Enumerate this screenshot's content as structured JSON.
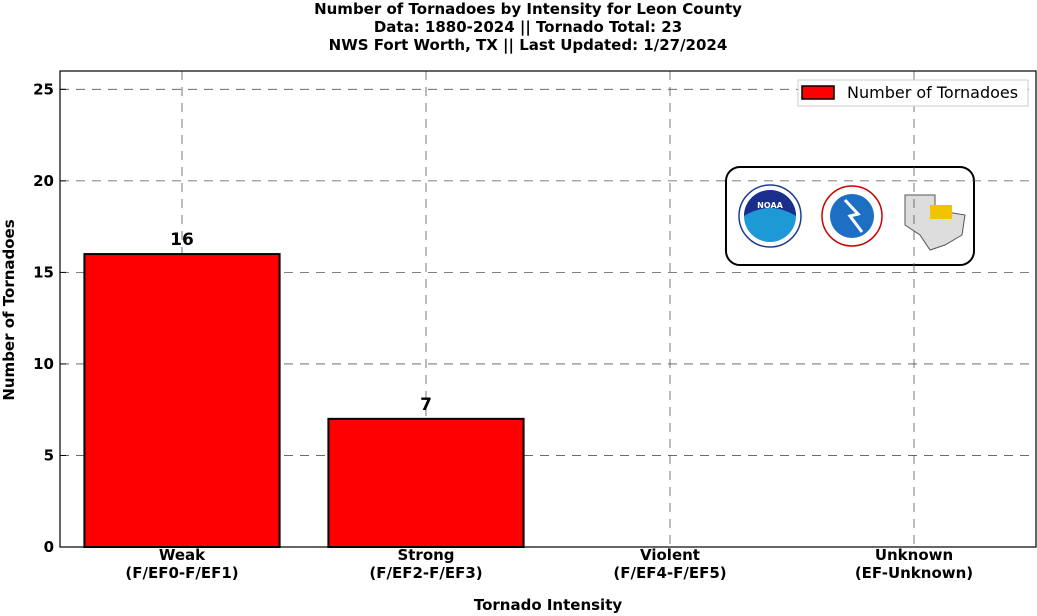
{
  "chart_data": {
    "type": "bar",
    "title": "Number of Tornadoes by Intensity for Leon County\nData: 1880-2024 || Tornado Total: 23\nNWS Fort Worth, TX || Last Updated: 1/27/2024",
    "xlabel": "Tornado Intensity",
    "ylabel": "Number of Tornadoes",
    "categories": [
      "Weak\n(F/EF0-F/EF1)",
      "Strong\n(F/EF2-F/EF3)",
      "Violent\n(F/EF4-F/EF5)",
      "Unknown\n(EF-Unknown)"
    ],
    "series": [
      {
        "name": "Number of Tornadoes",
        "color": "#ff0000",
        "values": [
          16,
          7,
          0,
          0
        ]
      }
    ],
    "ylim": [
      0,
      26
    ],
    "yticks": [
      0,
      5,
      10,
      15,
      20,
      25
    ],
    "grid": true,
    "legend": "upper right"
  }
}
